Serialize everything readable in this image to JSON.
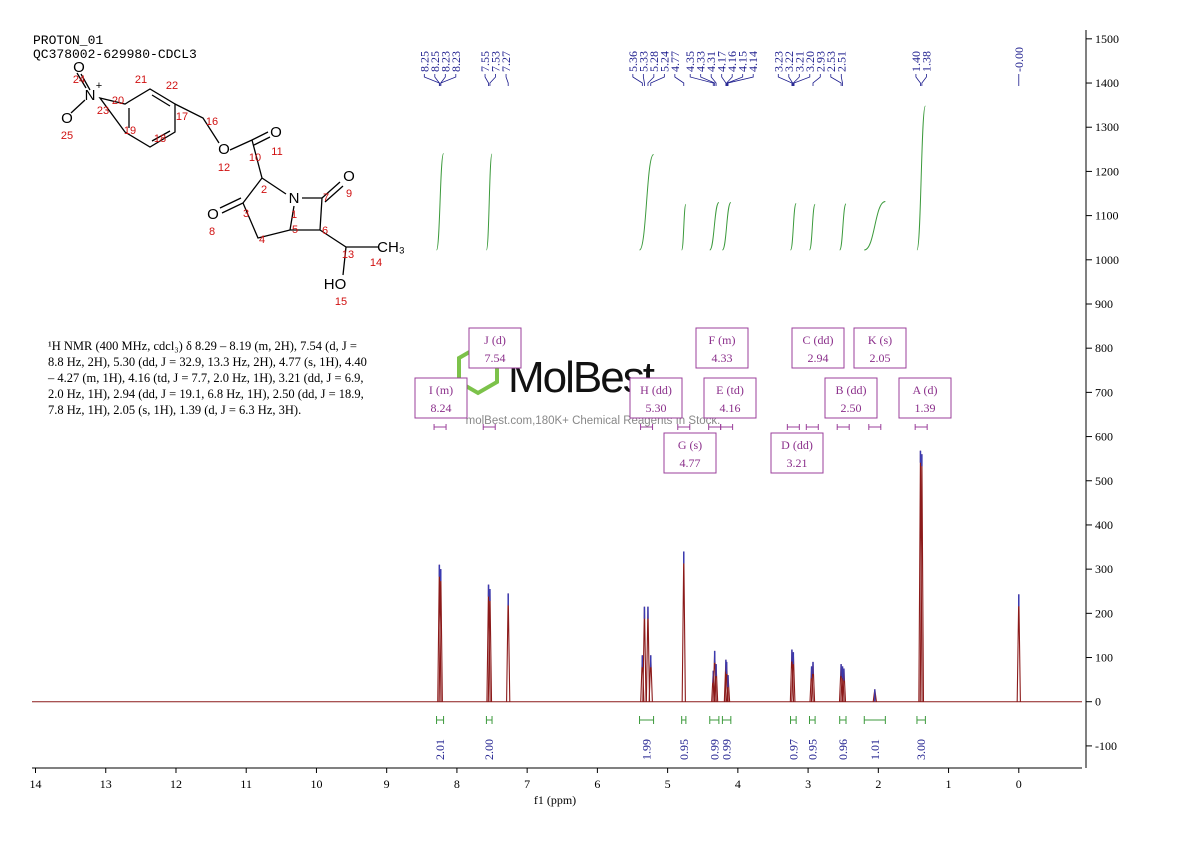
{
  "header": {
    "lines": [
      "PROTON_01",
      "QC378002-629980-CDCL3"
    ]
  },
  "description": "¹H NMR (400 MHz, cdcl₃) δ 8.29 – 8.19 (m, 2H), 7.54 (d, J = 8.8 Hz, 2H), 5.30 (dd, J = 32.9, 13.3 Hz, 2H), 4.77 (s, 1H), 4.40 – 4.27 (m, 1H), 4.16 (td, J = 7.7, 2.0 Hz, 1H), 3.21 (dd, J = 6.9, 2.0 Hz, 1H), 2.94 (dd, J = 19.1, 6.8 Hz, 1H), 2.50 (dd, J = 18.9, 7.8 Hz, 1H), 2.05 (s, 1H), 1.39 (d, J = 6.3 Hz, 3H).",
  "structure": {
    "atoms": [
      "O",
      "N",
      "+",
      "O",
      "O",
      "O",
      "N",
      "O",
      "O",
      "CH₃",
      "HO"
    ],
    "numbers": [
      "24",
      "23",
      "25",
      "20",
      "21",
      "22",
      "19",
      "18",
      "17",
      "16",
      "12",
      "10",
      "11",
      "2",
      "1",
      "7",
      "9",
      "3",
      "8",
      "4",
      "5",
      "6",
      "13",
      "14",
      "15"
    ]
  },
  "watermark": {
    "logo": "MolBest",
    "text": "molBest.com,180K+ Chemical Reagents In Stock."
  },
  "chart_data": {
    "type": "nmr",
    "xlabel": "f1 (ppm)",
    "xlim": [
      14.05,
      -0.9
    ],
    "xticks": [
      14,
      13,
      12,
      11,
      10,
      9,
      8,
      7,
      6,
      5,
      4,
      3,
      2,
      1,
      0
    ],
    "ylim": [
      -150,
      1520
    ],
    "yticks": [
      -100,
      0,
      100,
      200,
      300,
      400,
      500,
      600,
      700,
      800,
      900,
      1000,
      1100,
      1200,
      1300,
      1400,
      1500
    ],
    "color": "#8b1a1a",
    "x": [
      8.25,
      8.23,
      7.55,
      7.53,
      7.27,
      5.36,
      5.33,
      5.28,
      5.24,
      4.77,
      4.35,
      4.33,
      4.31,
      4.17,
      4.16,
      4.14,
      3.23,
      3.21,
      2.95,
      2.93,
      2.53,
      2.51,
      2.49,
      2.05,
      1.4,
      1.38,
      0.0
    ],
    "values": [
      310,
      300,
      265,
      255,
      245,
      105,
      215,
      215,
      105,
      340,
      70,
      115,
      85,
      95,
      90,
      60,
      118,
      112,
      80,
      90,
      85,
      80,
      75,
      28,
      568,
      560,
      243
    ],
    "peak_labels": [
      "8.25",
      "8.25",
      "8.23",
      "8.23",
      "7.55",
      "7.53",
      "7.27",
      "5.36",
      "5.33",
      "5.28",
      "5.24",
      "4.77",
      "4.35",
      "4.33",
      "4.31",
      "4.17",
      "4.16",
      "4.15",
      "4.14",
      "3.23",
      "3.22",
      "3.21",
      "3.20",
      "2.93",
      "2.53",
      "2.51",
      "1.40",
      "1.38",
      "-0.00"
    ],
    "integrals": {
      "color": "#3c9a3c",
      "ranges": [
        [
          8.29,
          8.19
        ],
        [
          7.58,
          7.5
        ],
        [
          5.4,
          5.2
        ],
        [
          4.8,
          4.74
        ],
        [
          4.4,
          4.27
        ],
        [
          4.22,
          4.1
        ],
        [
          3.25,
          3.17
        ],
        [
          2.98,
          2.9
        ],
        [
          2.55,
          2.46
        ],
        [
          2.2,
          1.9
        ],
        [
          1.45,
          1.33
        ]
      ],
      "values": [
        2.01,
        2.0,
        1.99,
        0.95,
        0.99,
        0.99,
        0.97,
        0.95,
        0.96,
        1.01,
        3.0
      ],
      "value_labels": [
        "2.01",
        "2.00",
        "1.99",
        "0.95",
        "0.99",
        "0.99",
        "0.97",
        "0.95",
        "0.96",
        "1.01",
        "3.00"
      ]
    },
    "multiplets": [
      {
        "name": "A (d)",
        "shift": "1.39"
      },
      {
        "name": "B (dd)",
        "shift": "2.50"
      },
      {
        "name": "C (dd)",
        "shift": "2.94"
      },
      {
        "name": "D (dd)",
        "shift": "3.21"
      },
      {
        "name": "E (td)",
        "shift": "4.16"
      },
      {
        "name": "F (m)",
        "shift": "4.33"
      },
      {
        "name": "G (s)",
        "shift": "4.77"
      },
      {
        "name": "H (dd)",
        "shift": "5.30"
      },
      {
        "name": "I (m)",
        "shift": "8.24"
      },
      {
        "name": "J (d)",
        "shift": "7.54"
      },
      {
        "name": "K (s)",
        "shift": "2.05"
      }
    ]
  }
}
